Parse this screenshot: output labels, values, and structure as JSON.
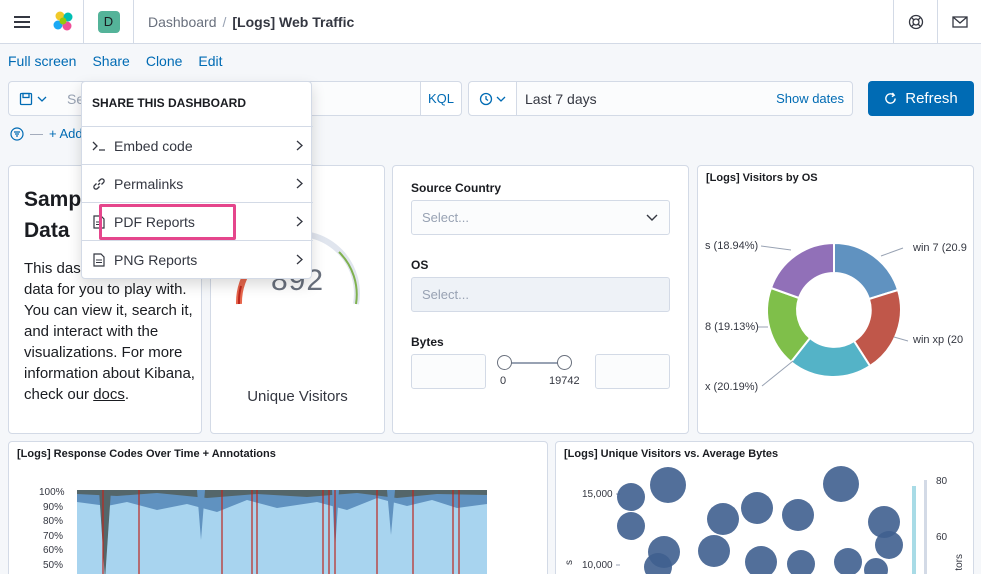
{
  "header": {
    "space_initial": "D",
    "breadcrumb_root": "Dashboard",
    "breadcrumb_sep": "/",
    "breadcrumb_current": "[Logs] Web Traffic"
  },
  "topnav": {
    "full_screen": "Full screen",
    "share": "Share",
    "clone": "Clone",
    "edit": "Edit"
  },
  "query": {
    "search_value": "Se",
    "language": "KQL",
    "date_range": "Last 7 days",
    "show_dates": "Show dates",
    "refresh_label": "Refresh"
  },
  "filters": {
    "add_filter": "+ Add"
  },
  "share_menu": {
    "title": "SHARE THIS DASHBOARD",
    "items": [
      {
        "label": "Embed code",
        "icon": "code-icon"
      },
      {
        "label": "Permalinks",
        "icon": "link-icon"
      },
      {
        "label": "PDF Reports",
        "icon": "document-icon"
      },
      {
        "label": "PNG Reports",
        "icon": "document-icon"
      }
    ]
  },
  "markdown_panel": {
    "title": "Samp\nData",
    "body_text": "This das contains sample data for you to play with. You can view it, search it, and interact with the visualizations. For more information about Kibana, check our",
    "link": "docs",
    "end": "."
  },
  "gauge_panel": {
    "value": "892",
    "label": "Unique Visitors"
  },
  "controls_panel": {
    "source_country_label": "Source Country",
    "source_country_placeholder": "Select...",
    "os_label": "OS",
    "os_placeholder": "Select...",
    "bytes_label": "Bytes",
    "bytes_min": "0",
    "bytes_max": "19742"
  },
  "os_panel": {
    "title": "[Logs] Visitors by OS",
    "labels": [
      "s (18.94%)",
      "8 (19.13%)",
      "x (20.19%)",
      "win 7 (20.9",
      "win xp (20"
    ]
  },
  "response_panel": {
    "title": "[Logs] Response Codes Over Time + Annotations",
    "y_ticks": [
      "100%",
      "90%",
      "80%",
      "70%",
      "60%",
      "50%"
    ]
  },
  "scatter_panel": {
    "title": "[Logs] Unique Visitors vs. Average Bytes",
    "y_ticks": [
      "15,000",
      "10,000"
    ],
    "right_ticks": [
      "80",
      "60"
    ],
    "y_label_fragment": "s",
    "right_label_fragment": "tors"
  },
  "colors": {
    "accent": "#006bb4",
    "highlight": "#e5468c",
    "os_purple": "#9170b8",
    "os_blue": "#6092c0",
    "os_red": "#ca8eae",
    "os_teal": "#54b399",
    "os_green": "#7fb14f"
  }
}
